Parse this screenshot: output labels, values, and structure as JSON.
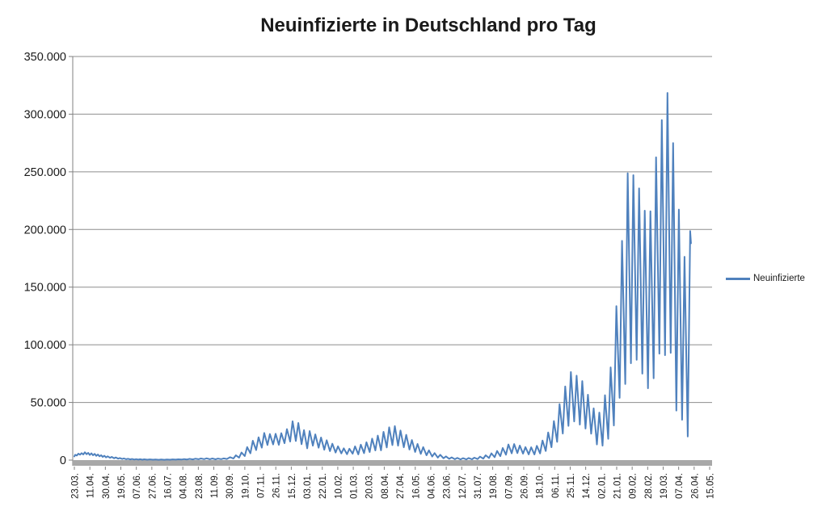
{
  "title": "Neuinfizierte in Deutschland pro Tag",
  "legend": {
    "label": "Neuinfizierte"
  },
  "colors": {
    "series": "#4F81BD",
    "gridline": "#8E8E8E",
    "axis": "#808080",
    "axis_band": "#A8A8A8",
    "text": "#1a1a1a"
  },
  "chart_data": {
    "type": "line",
    "title": "Neuinfizierte in Deutschland pro Tag",
    "xlabel": "",
    "ylabel": "",
    "ylim": [
      0,
      350000
    ],
    "y_tick_labels": [
      "0",
      "50.000",
      "100.000",
      "150.000",
      "200.000",
      "250.000",
      "300.000",
      "350.000"
    ],
    "y_tick_values": [
      0,
      50000,
      100000,
      150000,
      200000,
      250000,
      300000,
      350000
    ],
    "grid": "horizontal",
    "legend_position": "right",
    "x_tick_labels": [
      "23.03.",
      "11.04.",
      "30.04.",
      "19.05.",
      "07.06.",
      "27.06.",
      "16.07.",
      "04.08.",
      "23.08.",
      "11.09.",
      "30.09.",
      "19.10.",
      "07.11.",
      "26.11.",
      "15.12.",
      "03.01.",
      "22.01.",
      "10.02.",
      "01.03.",
      "20.03.",
      "08.04.",
      "27.04.",
      "16.05.",
      "04.06.",
      "23.06.",
      "12.07.",
      "31.07.",
      "19.08.",
      "07.09.",
      "26.09.",
      "18.10.",
      "06.11.",
      "25.11.",
      "14.12.",
      "02.01.",
      "21.01.",
      "09.02.",
      "28.02.",
      "19.03.",
      "07.04.",
      "26.04.",
      "15.05."
    ],
    "x_description": "daily values; x = days since first tick (23.03.), ticks every ~19 days",
    "total_days": 783,
    "series": [
      {
        "name": "Neuinfizierte",
        "color": "#4F81BD",
        "points": [
          [
            0,
            3200
          ],
          [
            1,
            4600
          ],
          [
            3,
            4000
          ],
          [
            5,
            5600
          ],
          [
            7,
            4700
          ],
          [
            9,
            6000
          ],
          [
            11,
            4900
          ],
          [
            13,
            6800
          ],
          [
            15,
            5100
          ],
          [
            17,
            6300
          ],
          [
            19,
            4500
          ],
          [
            21,
            5900
          ],
          [
            23,
            4200
          ],
          [
            25,
            5400
          ],
          [
            27,
            3700
          ],
          [
            29,
            4900
          ],
          [
            31,
            3300
          ],
          [
            33,
            4300
          ],
          [
            35,
            2800
          ],
          [
            37,
            3800
          ],
          [
            39,
            2400
          ],
          [
            41,
            3300
          ],
          [
            44,
            2000
          ],
          [
            46,
            2800
          ],
          [
            49,
            1600
          ],
          [
            51,
            2300
          ],
          [
            54,
            1250
          ],
          [
            56,
            1850
          ],
          [
            59,
            950
          ],
          [
            61,
            1450
          ],
          [
            64,
            780
          ],
          [
            66,
            1150
          ],
          [
            69,
            600
          ],
          [
            71,
            980
          ],
          [
            74,
            500
          ],
          [
            76,
            860
          ],
          [
            79,
            430
          ],
          [
            81,
            760
          ],
          [
            84,
            380
          ],
          [
            86,
            680
          ],
          [
            90,
            340
          ],
          [
            93,
            620
          ],
          [
            97,
            320
          ],
          [
            100,
            590
          ],
          [
            104,
            300
          ],
          [
            107,
            560
          ],
          [
            111,
            300
          ],
          [
            114,
            560
          ],
          [
            118,
            330
          ],
          [
            121,
            620
          ],
          [
            125,
            390
          ],
          [
            128,
            720
          ],
          [
            132,
            460
          ],
          [
            135,
            860
          ],
          [
            139,
            560
          ],
          [
            142,
            1020
          ],
          [
            146,
            660
          ],
          [
            149,
            1220
          ],
          [
            153,
            760
          ],
          [
            156,
            1430
          ],
          [
            160,
            810
          ],
          [
            163,
            1530
          ],
          [
            167,
            760
          ],
          [
            170,
            1380
          ],
          [
            174,
            710
          ],
          [
            177,
            1320
          ],
          [
            181,
            820
          ],
          [
            184,
            1480
          ],
          [
            188,
            980
          ],
          [
            192,
            2500
          ],
          [
            196,
            1400
          ],
          [
            199,
            4100
          ],
          [
            203,
            2200
          ],
          [
            206,
            6600
          ],
          [
            210,
            3500
          ],
          [
            213,
            11300
          ],
          [
            217,
            5900
          ],
          [
            220,
            16800
          ],
          [
            224,
            8700
          ],
          [
            227,
            19800
          ],
          [
            231,
            10800
          ],
          [
            234,
            23500
          ],
          [
            238,
            13100
          ],
          [
            241,
            22600
          ],
          [
            245,
            13600
          ],
          [
            248,
            22800
          ],
          [
            252,
            13200
          ],
          [
            255,
            23400
          ],
          [
            259,
            14600
          ],
          [
            262,
            26900
          ],
          [
            266,
            16100
          ],
          [
            269,
            33700
          ],
          [
            273,
            16600
          ],
          [
            276,
            32200
          ],
          [
            280,
            13800
          ],
          [
            283,
            26000
          ],
          [
            287,
            10200
          ],
          [
            290,
            25200
          ],
          [
            294,
            12500
          ],
          [
            297,
            22300
          ],
          [
            301,
            10800
          ],
          [
            304,
            19600
          ],
          [
            308,
            9000
          ],
          [
            311,
            17200
          ],
          [
            315,
            7800
          ],
          [
            318,
            14200
          ],
          [
            322,
            6600
          ],
          [
            325,
            12000
          ],
          [
            329,
            5800
          ],
          [
            332,
            10200
          ],
          [
            336,
            5100
          ],
          [
            339,
            9900
          ],
          [
            343,
            5500
          ],
          [
            346,
            11900
          ],
          [
            350,
            5000
          ],
          [
            353,
            13400
          ],
          [
            357,
            6000
          ],
          [
            360,
            15500
          ],
          [
            364,
            7000
          ],
          [
            367,
            18600
          ],
          [
            371,
            8400
          ],
          [
            374,
            21300
          ],
          [
            378,
            8500
          ],
          [
            381,
            24500
          ],
          [
            385,
            11000
          ],
          [
            388,
            28400
          ],
          [
            392,
            13000
          ],
          [
            395,
            29500
          ],
          [
            399,
            12500
          ],
          [
            402,
            25700
          ],
          [
            406,
            11100
          ],
          [
            409,
            21900
          ],
          [
            413,
            9200
          ],
          [
            416,
            17400
          ],
          [
            420,
            7100
          ],
          [
            423,
            14000
          ],
          [
            427,
            5400
          ],
          [
            430,
            11300
          ],
          [
            434,
            4200
          ],
          [
            437,
            8500
          ],
          [
            441,
            3100
          ],
          [
            444,
            6100
          ],
          [
            448,
            2200
          ],
          [
            451,
            4600
          ],
          [
            455,
            1600
          ],
          [
            458,
            3200
          ],
          [
            462,
            1100
          ],
          [
            465,
            2400
          ],
          [
            469,
            800
          ],
          [
            472,
            1900
          ],
          [
            476,
            650
          ],
          [
            479,
            1700
          ],
          [
            483,
            600
          ],
          [
            486,
            1800
          ],
          [
            490,
            700
          ],
          [
            493,
            2100
          ],
          [
            497,
            900
          ],
          [
            500,
            3000
          ],
          [
            504,
            1300
          ],
          [
            507,
            4200
          ],
          [
            511,
            1800
          ],
          [
            514,
            5900
          ],
          [
            518,
            2500
          ],
          [
            521,
            7900
          ],
          [
            525,
            3400
          ],
          [
            528,
            10500
          ],
          [
            532,
            4700
          ],
          [
            535,
            13600
          ],
          [
            539,
            5900
          ],
          [
            542,
            13900
          ],
          [
            546,
            6100
          ],
          [
            549,
            12600
          ],
          [
            553,
            5600
          ],
          [
            556,
            11300
          ],
          [
            560,
            5000
          ],
          [
            563,
            11100
          ],
          [
            567,
            4900
          ],
          [
            570,
            12400
          ],
          [
            574,
            5800
          ],
          [
            577,
            17000
          ],
          [
            581,
            7900
          ],
          [
            584,
            24000
          ],
          [
            588,
            11200
          ],
          [
            591,
            33900
          ],
          [
            595,
            15800
          ],
          [
            598,
            48600
          ],
          [
            602,
            23000
          ],
          [
            605,
            63900
          ],
          [
            609,
            29700
          ],
          [
            612,
            76400
          ],
          [
            616,
            33500
          ],
          [
            619,
            73200
          ],
          [
            623,
            30800
          ],
          [
            626,
            68500
          ],
          [
            630,
            27400
          ],
          [
            633,
            56700
          ],
          [
            637,
            22900
          ],
          [
            640,
            44900
          ],
          [
            644,
            13600
          ],
          [
            647,
            41200
          ],
          [
            651,
            12500
          ],
          [
            654,
            56300
          ],
          [
            658,
            18500
          ],
          [
            661,
            80400
          ],
          [
            665,
            30000
          ],
          [
            668,
            133500
          ],
          [
            672,
            54000
          ],
          [
            675,
            190100
          ],
          [
            679,
            66000
          ],
          [
            682,
            248800
          ],
          [
            686,
            84000
          ],
          [
            689,
            247100
          ],
          [
            693,
            87000
          ],
          [
            696,
            235600
          ],
          [
            700,
            75000
          ],
          [
            703,
            216300
          ],
          [
            707,
            62300
          ],
          [
            710,
            215800
          ],
          [
            714,
            71000
          ],
          [
            717,
            262600
          ],
          [
            721,
            92300
          ],
          [
            724,
            294900
          ],
          [
            728,
            91000
          ],
          [
            731,
            318400
          ],
          [
            735,
            93000
          ],
          [
            738,
            274900
          ],
          [
            742,
            43000
          ],
          [
            745,
            217300
          ],
          [
            749,
            35000
          ],
          [
            752,
            176300
          ],
          [
            756,
            20500
          ],
          [
            759,
            198600
          ],
          [
            760,
            188000
          ]
        ]
      }
    ]
  }
}
